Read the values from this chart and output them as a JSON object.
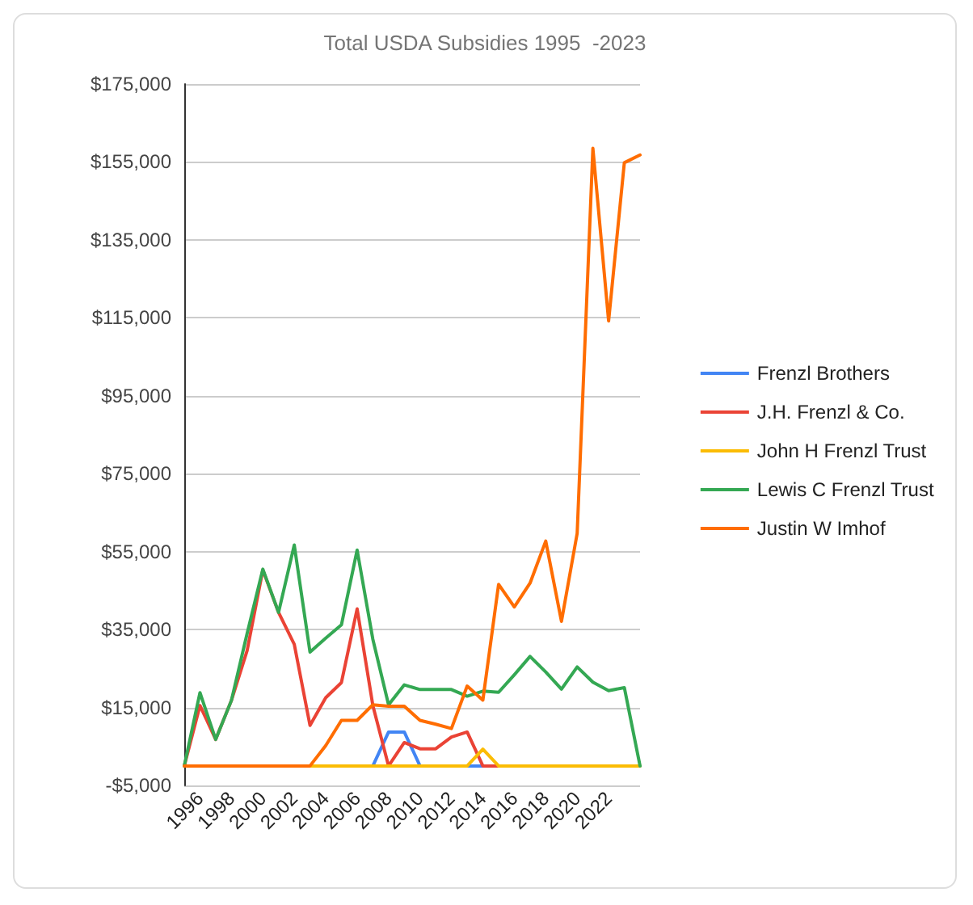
{
  "chart_data": {
    "type": "line",
    "title": "Total USDA Subsidies 1995  -2023",
    "categories": [
      null,
      "1996",
      null,
      "1998",
      null,
      "2000",
      null,
      "2002",
      null,
      "2004",
      null,
      "2006",
      null,
      "2008",
      null,
      "2010",
      null,
      "2012",
      null,
      "2014",
      null,
      "2016",
      null,
      "2018",
      null,
      "2020",
      null,
      "2022",
      null,
      null
    ],
    "series": [
      {
        "name": "Frenzl Brothers",
        "color": "#4285f4",
        "values": [
          null,
          null,
          null,
          null,
          null,
          null,
          null,
          null,
          null,
          null,
          null,
          null,
          0,
          8700,
          8700,
          0,
          null,
          null,
          0,
          0,
          null,
          null,
          null,
          null,
          null,
          null,
          null,
          null,
          null,
          null
        ]
      },
      {
        "name": "J.H. Frenzl & Co.",
        "color": "#ea4335",
        "values": [
          0,
          15500,
          6800,
          16800,
          29600,
          50300,
          39400,
          31200,
          10400,
          17500,
          21400,
          40300,
          15500,
          0,
          6000,
          4400,
          4400,
          7400,
          8700,
          0,
          0,
          null,
          null,
          null,
          null,
          null,
          null,
          null,
          null,
          null
        ]
      },
      {
        "name": "John H Frenzl Trust",
        "color": "#fbbc04",
        "values": [
          null,
          null,
          null,
          null,
          null,
          null,
          null,
          0,
          0,
          0,
          0,
          0,
          0,
          0,
          0,
          0,
          0,
          0,
          0,
          4300,
          0,
          0,
          0,
          0,
          0,
          0,
          0,
          0,
          0,
          0
        ]
      },
      {
        "name": "Lewis C Frenzl Trust",
        "color": "#34a853",
        "values": [
          0,
          18800,
          6800,
          16800,
          34000,
          50500,
          39400,
          56700,
          29200,
          32800,
          36200,
          55400,
          32500,
          15700,
          20800,
          19600,
          19600,
          19600,
          17900,
          19200,
          18900,
          23400,
          28100,
          24100,
          19700,
          25400,
          21500,
          19300,
          20100,
          0
        ]
      },
      {
        "name": "Justin W Imhof",
        "color": "#ff6d01",
        "values": [
          0,
          0,
          0,
          0,
          0,
          0,
          0,
          0,
          0,
          5200,
          11700,
          11700,
          15700,
          15300,
          15300,
          11700,
          10700,
          9600,
          20500,
          16900,
          46600,
          40800,
          46900,
          57700,
          37100,
          59700,
          158500,
          114200,
          154800,
          156800
        ]
      }
    ],
    "ylim": [
      -5000,
      175000
    ],
    "yticks": [
      {
        "value": -5000,
        "label": "-$5,000"
      },
      {
        "value": 15000,
        "label": "$15,000"
      },
      {
        "value": 35000,
        "label": "$35,000"
      },
      {
        "value": 55000,
        "label": "$55,000"
      },
      {
        "value": 75000,
        "label": "$75,000"
      },
      {
        "value": 95000,
        "label": "$95,000"
      },
      {
        "value": 115000,
        "label": "$115,000"
      },
      {
        "value": 135000,
        "label": "$135,000"
      },
      {
        "value": 155000,
        "label": "$155,000"
      },
      {
        "value": 175000,
        "label": "$175,000"
      }
    ],
    "grid": "y",
    "legend": "right",
    "marker": "none",
    "line_style": "solid"
  }
}
